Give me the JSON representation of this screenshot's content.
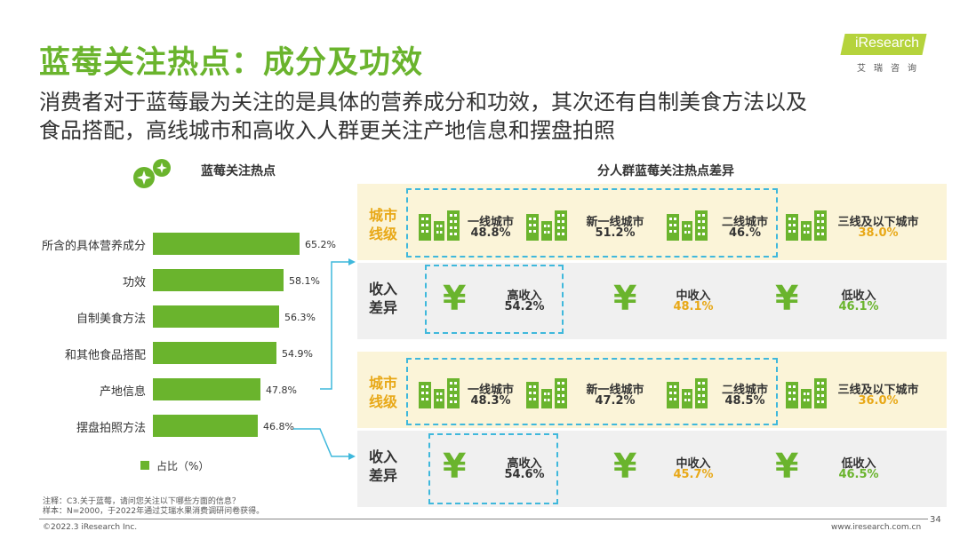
{
  "title": "蓝莓关注热点：成分及功效",
  "subtitle_lines": [
    "消费者对于蓝莓最为关注的是具体的营养成分和功效，其次还有自制美食方法以及",
    "食品搭配，高线城市和高收入人群更关注产地信息和摆盘拍照"
  ],
  "logo": {
    "text": "iResearch",
    "sub": "艾瑞咨询"
  },
  "chart_data": {
    "type": "bar",
    "orientation": "horizontal",
    "title": "蓝莓关注热点",
    "categories": [
      "所含的具体营养成分",
      "功效",
      "自制美食方法",
      "和其他食品搭配",
      "产地信息",
      "摆盘拍照方法"
    ],
    "series": [
      {
        "name": "占比（%）",
        "values": [
          65.2,
          58.1,
          56.3,
          54.9,
          47.8,
          46.8
        ]
      }
    ],
    "value_labels": [
      "65.2%",
      "58.1%",
      "56.3%",
      "54.9%",
      "47.8%",
      "46.8%"
    ],
    "xlim": [
      0,
      70
    ],
    "legend_placement": "bottom",
    "colors": {
      "bar": "#6ab42d"
    }
  },
  "right_panel": {
    "title": "分人群蓝莓关注热点差异",
    "row_labels": {
      "city": [
        "城市",
        "线级"
      ],
      "income": [
        "收入",
        "差异"
      ]
    },
    "groups": [
      {
        "city": [
          {
            "label": "一线城市",
            "value": "48.8%"
          },
          {
            "label": "新一线城市",
            "value": "51.2%"
          },
          {
            "label": "二线城市",
            "value": "46.%"
          },
          {
            "label": "三线及以下城市",
            "value": "38.0%"
          }
        ],
        "income": [
          {
            "label": "高收入",
            "value": "54.2%"
          },
          {
            "label": "中收入",
            "value": "48.1%"
          },
          {
            "label": "低收入",
            "value": "46.1%"
          }
        ]
      },
      {
        "city": [
          {
            "label": "一线城市",
            "value": "48.3%"
          },
          {
            "label": "新一线城市",
            "value": "47.2%"
          },
          {
            "label": "二线城市",
            "value": "48.5%"
          },
          {
            "label": "三线及以下城市",
            "value": "36.0%"
          }
        ],
        "income": [
          {
            "label": "高收入",
            "value": "54.6%"
          },
          {
            "label": "中收入",
            "value": "45.7%"
          },
          {
            "label": "低收入",
            "value": "46.5%"
          }
        ]
      }
    ]
  },
  "notes": [
    "注释：C3.关于蓝莓，请问您关注以下哪些方面的信息？",
    "样本：N=2000，于2022年通过艾瑞水果消费调研问卷获得。"
  ],
  "footer": {
    "copyright": "©2022.3 iResearch Inc.",
    "website": "www.iresearch.com.cn",
    "page": "34"
  },
  "icons": {
    "yen": "¥",
    "decor": "sparkle-badge-icon",
    "building": "building-icon"
  },
  "colors": {
    "accent": "#6ab42d",
    "gold": "#e8a817",
    "dash": "#3fb8dc",
    "city_band": "#fbf4d8",
    "income_band": "#f0f0f0"
  }
}
